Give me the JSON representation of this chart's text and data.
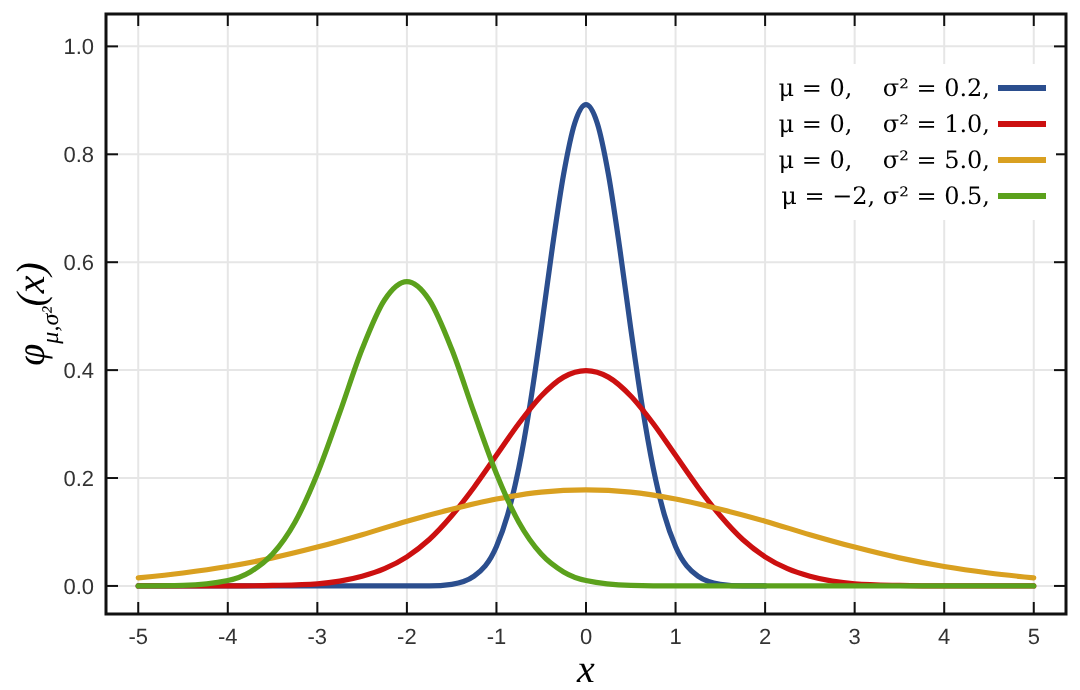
{
  "chart_data": {
    "type": "line",
    "xlabel": "x",
    "ylabel": "φ$_{μ,σ²}$(x)",
    "xlim": [
      -5.36,
      5.36
    ],
    "ylim": [
      -0.052,
      1.06
    ],
    "xticks": [
      -5,
      -4,
      -3,
      -2,
      -1,
      0,
      1,
      2,
      3,
      4,
      5
    ],
    "yticks": [
      {
        "value": 0,
        "label": "0.0"
      },
      0.2,
      0.4,
      0.6,
      0.8,
      {
        "value": 1,
        "label": "1.0"
      }
    ],
    "grid": true,
    "legend": "top right",
    "line_style": "solid",
    "marker": "none",
    "series": [
      {
        "name": "μ = 0,    σ² = 0.2,",
        "color": "#2b4e8e",
        "x": [
          -5,
          -2.5,
          -2,
          -1.75,
          -1.5,
          -1.25,
          -1,
          -0.875,
          -0.75,
          -0.625,
          -0.5,
          -0.375,
          -0.25,
          -0.125,
          0,
          0.125,
          0.25,
          0.375,
          0.5,
          0.625,
          0.75,
          0.875,
          1,
          1.25,
          1.5,
          1.75,
          2
        ],
        "values": [
          0,
          0,
          0,
          0,
          0.003,
          0.018,
          0.073,
          0.132,
          0.219,
          0.336,
          0.477,
          0.628,
          0.763,
          0.858,
          0.892,
          0.858,
          0.763,
          0.628,
          0.477,
          0.336,
          0.219,
          0.132,
          0.073,
          0.018,
          0.003,
          0,
          0
        ]
      },
      {
        "name": "μ = 0,    σ² = 1.0,",
        "color": "#cc1010",
        "x": [
          -5,
          -4,
          -3.5,
          -3,
          -2.75,
          -2.5,
          -2.25,
          -2,
          -1.75,
          -1.5,
          -1.25,
          -1,
          -0.75,
          -0.5,
          -0.25,
          0,
          0.25,
          0.5,
          0.75,
          1,
          1.25,
          1.5,
          1.75,
          2,
          2.25,
          2.5,
          2.75,
          3,
          3.5,
          4,
          5
        ],
        "values": [
          0,
          0,
          0.001,
          0.004,
          0.009,
          0.018,
          0.032,
          0.054,
          0.086,
          0.13,
          0.183,
          0.242,
          0.301,
          0.352,
          0.387,
          0.399,
          0.387,
          0.352,
          0.301,
          0.242,
          0.183,
          0.13,
          0.086,
          0.054,
          0.032,
          0.018,
          0.009,
          0.004,
          0.001,
          0,
          0
        ]
      },
      {
        "name": "μ = 0,    σ² = 5.0,",
        "color": "#d9a020",
        "x": [
          -5,
          -4.5,
          -4,
          -3.5,
          -3,
          -2.5,
          -2,
          -1.5,
          -1,
          -0.5,
          0,
          0.5,
          1,
          1.5,
          2,
          2.5,
          3,
          3.5,
          4,
          4.5,
          5
        ],
        "values": [
          0.015,
          0.024,
          0.036,
          0.052,
          0.072,
          0.095,
          0.12,
          0.142,
          0.161,
          0.174,
          0.178,
          0.174,
          0.161,
          0.142,
          0.12,
          0.095,
          0.072,
          0.052,
          0.036,
          0.024,
          0.015
        ]
      },
      {
        "name": "μ = −2, σ² = 0.5,",
        "color": "#5ba11c",
        "x": [
          -5,
          -4.5,
          -4,
          -3.75,
          -3.5,
          -3.25,
          -3,
          -2.75,
          -2.5,
          -2.25,
          -2,
          -1.75,
          -1.5,
          -1.25,
          -1,
          -0.75,
          -0.5,
          -0.25,
          0,
          0.5,
          1,
          5
        ],
        "values": [
          0,
          0.001,
          0.01,
          0.026,
          0.059,
          0.118,
          0.208,
          0.321,
          0.439,
          0.53,
          0.564,
          0.53,
          0.439,
          0.321,
          0.208,
          0.118,
          0.059,
          0.026,
          0.01,
          0.001,
          0,
          0
        ]
      }
    ]
  }
}
